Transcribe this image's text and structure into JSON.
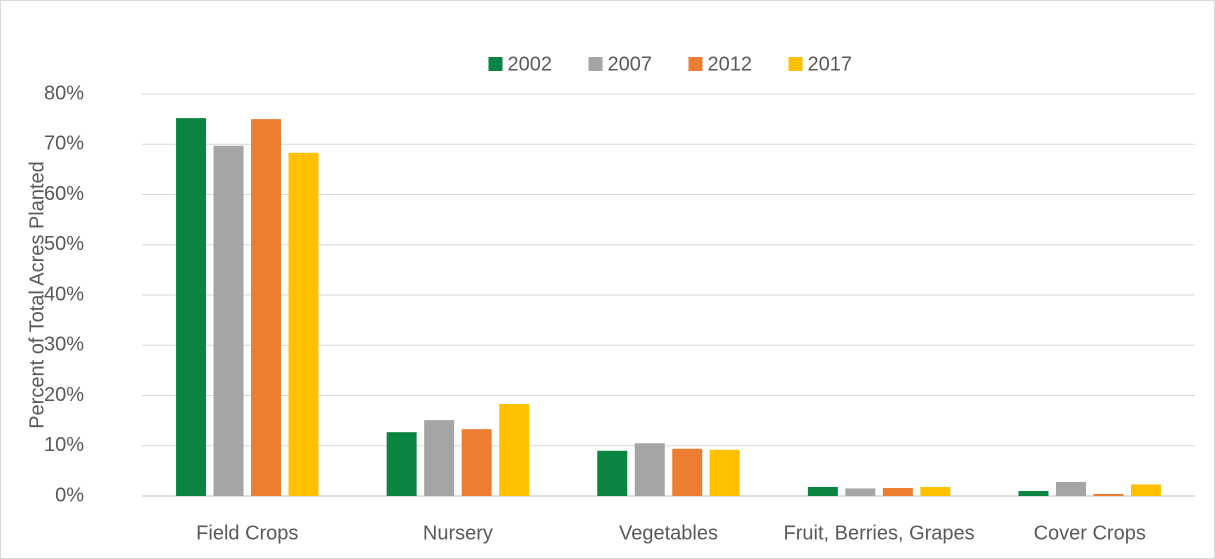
{
  "chart_data": {
    "type": "bar",
    "y_label": "Percent of Total Acres Planted",
    "categories": [
      "Field Crops",
      "Nursery",
      "Vegetables",
      "Fruit, Berries, Grapes",
      "Cover Crops"
    ],
    "series": [
      {
        "name": "2002",
        "color": "#0a8441",
        "values": [
          75.2,
          12.7,
          9.0,
          1.8,
          1.0
        ]
      },
      {
        "name": "2007",
        "color": "#a5a5a5",
        "values": [
          69.7,
          15.1,
          10.5,
          1.5,
          2.8
        ]
      },
      {
        "name": "2012",
        "color": "#ed7d31",
        "values": [
          75.0,
          13.3,
          9.4,
          1.6,
          0.4
        ]
      },
      {
        "name": "2017",
        "color": "#ffc000",
        "values": [
          68.3,
          18.3,
          9.2,
          1.8,
          2.3
        ]
      }
    ],
    "ylim": [
      0,
      80
    ],
    "yticks": [
      {
        "value": 0,
        "label": "0%"
      },
      {
        "value": 10,
        "label": "10%"
      },
      {
        "value": 20,
        "label": "20%"
      },
      {
        "value": 30,
        "label": "30%"
      },
      {
        "value": 40,
        "label": "40%"
      },
      {
        "value": 50,
        "label": "50%"
      },
      {
        "value": 60,
        "label": "60%"
      },
      {
        "value": 70,
        "label": "70%"
      },
      {
        "value": 80,
        "label": "80%"
      }
    ],
    "grid": true,
    "legend": "top"
  }
}
